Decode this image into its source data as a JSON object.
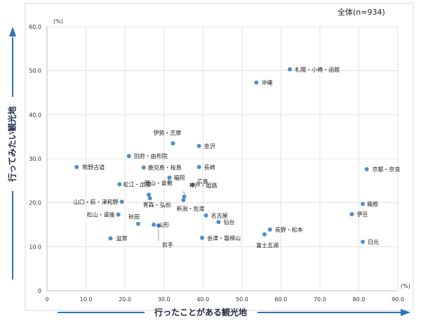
{
  "chart_data": {
    "type": "scatter",
    "title": "",
    "note": "全体(n=934)",
    "xlabel": "行ったことがある観光地",
    "ylabel": "行ってみたい観光地",
    "x_unit": "(%)",
    "y_unit": "(%)",
    "xlim": [
      0,
      90
    ],
    "ylim": [
      0,
      60
    ],
    "xticks": [
      "0",
      "10.0",
      "20.0",
      "30.0",
      "40.0",
      "50.0",
      "60.0",
      "70.0",
      "80.0",
      "90.0"
    ],
    "yticks": [
      "0",
      "10.0",
      "20.0",
      "30.0",
      "40.0",
      "50.0",
      "60.0"
    ],
    "grid": true,
    "point_color": "#4f8fc9",
    "arrow_color": "#2e75b6",
    "points": [
      {
        "label": "札幌・小樽・函館",
        "x": 62.3,
        "y": 50.3
      },
      {
        "label": "沖縄",
        "x": 53.7,
        "y": 47.3
      },
      {
        "label": "伊勢・志摩",
        "x": 32.3,
        "y": 33.5
      },
      {
        "label": "金沢",
        "x": 39.0,
        "y": 32.9
      },
      {
        "label": "別府・由布院",
        "x": 21.0,
        "y": 30.6
      },
      {
        "label": "熊野古道",
        "x": 7.6,
        "y": 28.1
      },
      {
        "label": "鹿児島・桜島",
        "x": 24.8,
        "y": 28.0
      },
      {
        "label": "長崎",
        "x": 39.0,
        "y": 28.1
      },
      {
        "label": "京都・奈良",
        "x": 82.0,
        "y": 27.6
      },
      {
        "label": "福岡",
        "x": 31.4,
        "y": 25.7
      },
      {
        "label": "広島",
        "x": 37.4,
        "y": 24.1
      },
      {
        "label": "松江・出雲",
        "x": 18.6,
        "y": 24.2
      },
      {
        "label": "岡山・倉敷",
        "x": 26.1,
        "y": 21.8
      },
      {
        "label": "神戸・姫路",
        "x": 35.2,
        "y": 21.4
      },
      {
        "label": "山口・萩・津和野",
        "x": 19.2,
        "y": 20.2
      },
      {
        "label": "箱根",
        "x": 81.0,
        "y": 19.7
      },
      {
        "label": "青森・弘前",
        "x": 26.4,
        "y": 21.0
      },
      {
        "label": "新潟・佐渡",
        "x": 35.0,
        "y": 20.6
      },
      {
        "label": "伊豆",
        "x": 78.2,
        "y": 17.4
      },
      {
        "label": "松山・道後",
        "x": 18.3,
        "y": 17.3
      },
      {
        "label": "名古屋",
        "x": 40.8,
        "y": 17.1
      },
      {
        "label": "秋田",
        "x": 23.4,
        "y": 15.2
      },
      {
        "label": "山形",
        "x": 27.4,
        "y": 15.0
      },
      {
        "label": "仙台",
        "x": 44.0,
        "y": 15.6
      },
      {
        "label": "長野・松本",
        "x": 57.2,
        "y": 13.9
      },
      {
        "label": "富士五湖",
        "x": 55.8,
        "y": 12.8
      },
      {
        "label": "滋賀",
        "x": 16.3,
        "y": 11.9
      },
      {
        "label": "岩手",
        "x": 28.6,
        "y": 14.8
      },
      {
        "label": "会津・磐梯山",
        "x": 39.8,
        "y": 12.0
      },
      {
        "label": "日光",
        "x": 81.0,
        "y": 11.1
      }
    ]
  }
}
